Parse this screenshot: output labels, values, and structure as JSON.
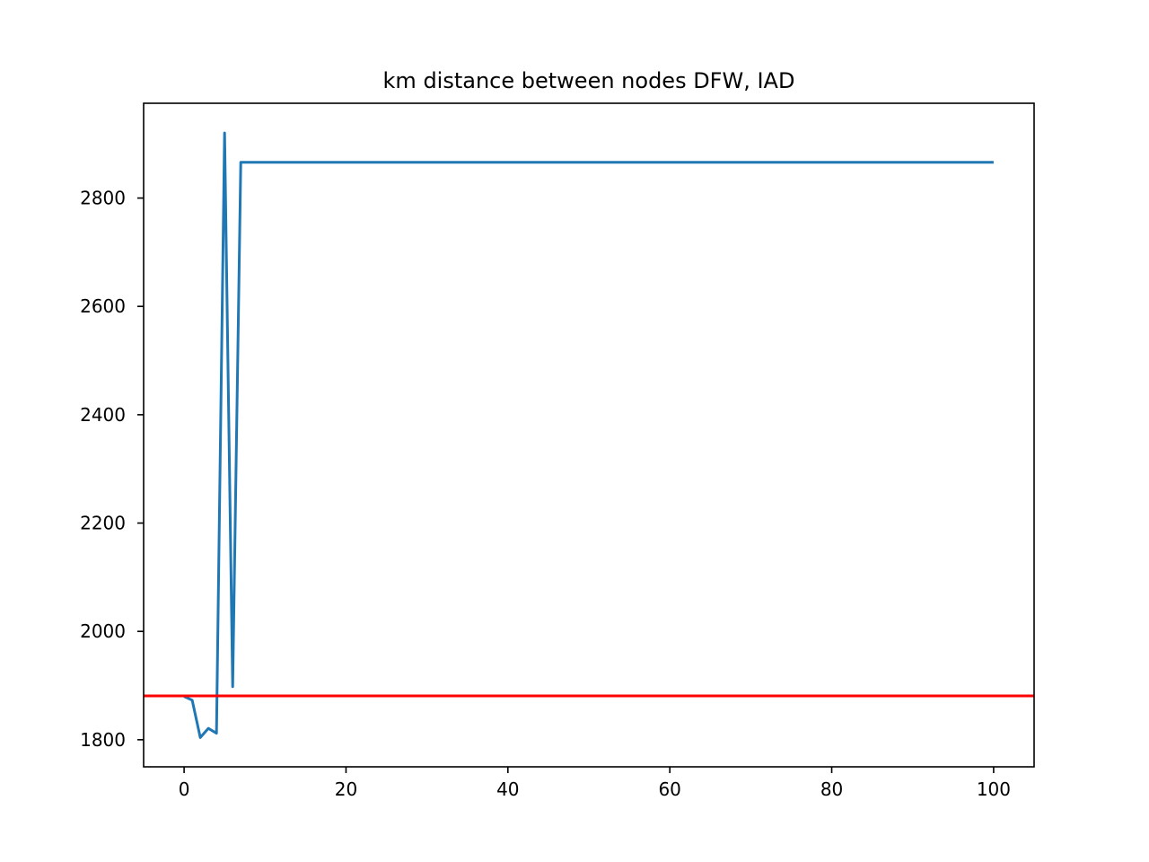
{
  "chart_data": {
    "type": "line",
    "title": "km distance between nodes DFW, IAD",
    "xlabel": "",
    "ylabel": "",
    "xlim": [
      -5,
      105
    ],
    "ylim": [
      1750,
      2975
    ],
    "xticks": [
      0,
      20,
      40,
      60,
      80,
      100
    ],
    "yticks": [
      1800,
      2000,
      2200,
      2400,
      2600,
      2800
    ],
    "grid": false,
    "series": [
      {
        "color": "#1f77b4",
        "x": [
          0,
          1,
          2,
          3,
          4,
          5,
          6,
          7,
          100
        ],
        "y": [
          1880,
          1873,
          1804,
          1821,
          1812,
          2920,
          1898,
          2866,
          2866
        ]
      }
    ],
    "reference_lines": [
      {
        "orientation": "horizontal",
        "y": 1881,
        "color": "#ff0000"
      }
    ]
  }
}
